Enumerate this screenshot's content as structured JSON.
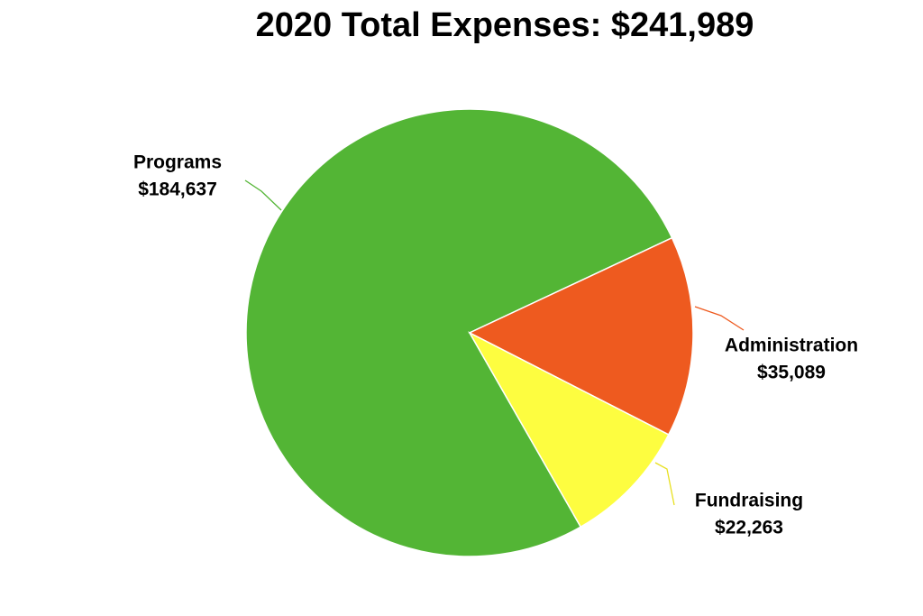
{
  "chart_data": {
    "type": "pie",
    "title": "2020 Total Expenses: $241,989",
    "categories": [
      "Programs",
      "Administration",
      "Fundraising"
    ],
    "values": [
      184637,
      35089,
      22263
    ],
    "value_labels": [
      "$184,637",
      "$35,089",
      "$22,263"
    ],
    "colors": [
      "#53b535",
      "#ee5a1f",
      "#fdfd40"
    ]
  }
}
